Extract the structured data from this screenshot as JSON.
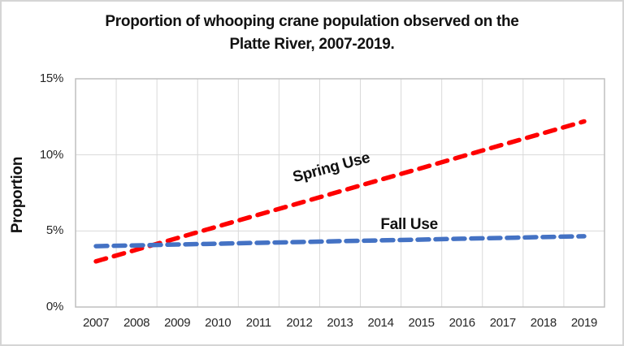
{
  "frame": {
    "background_color": "#ffffff",
    "border_color": "#d5d5d5"
  },
  "chart_data": {
    "type": "line",
    "title_line1": "Proportion of whooping crane population observed on the",
    "title_line2": "Platte River, 2007-2019.",
    "ylabel": "Proportion",
    "xlabel": "",
    "grid": true,
    "legend_position": "none",
    "ylim": [
      0,
      15
    ],
    "yticks": [
      {
        "value": 0,
        "label": "0%"
      },
      {
        "value": 5,
        "label": "5%"
      },
      {
        "value": 10,
        "label": "10%"
      },
      {
        "value": 15,
        "label": "15%"
      }
    ],
    "categories": [
      "2007",
      "2008",
      "2009",
      "2010",
      "2011",
      "2012",
      "2013",
      "2014",
      "2015",
      "2016",
      "2017",
      "2018",
      "2019"
    ],
    "series": [
      {
        "name": "Spring Use",
        "color": "#fe0000",
        "line_style": "dashed",
        "values": [
          3.0,
          3.77,
          4.53,
          5.3,
          6.07,
          6.83,
          7.6,
          8.37,
          9.13,
          9.9,
          10.67,
          11.43,
          12.2
        ]
      },
      {
        "name": "Fall Use",
        "color": "#4472c4",
        "line_style": "dashed",
        "values": [
          4.0,
          4.05,
          4.11,
          4.16,
          4.22,
          4.27,
          4.33,
          4.38,
          4.43,
          4.49,
          4.54,
          4.6,
          4.65
        ]
      }
    ],
    "annotations": [
      {
        "text": "Spring Use",
        "x": 2012.8,
        "y": 9.12,
        "rotation_deg": -15
      },
      {
        "text": "Fall Use",
        "x": 2014.7,
        "y": 5.4,
        "rotation_deg": 0
      }
    ],
    "grid_color": "#d9d9d9",
    "axis_color": "#bfbfbf"
  }
}
